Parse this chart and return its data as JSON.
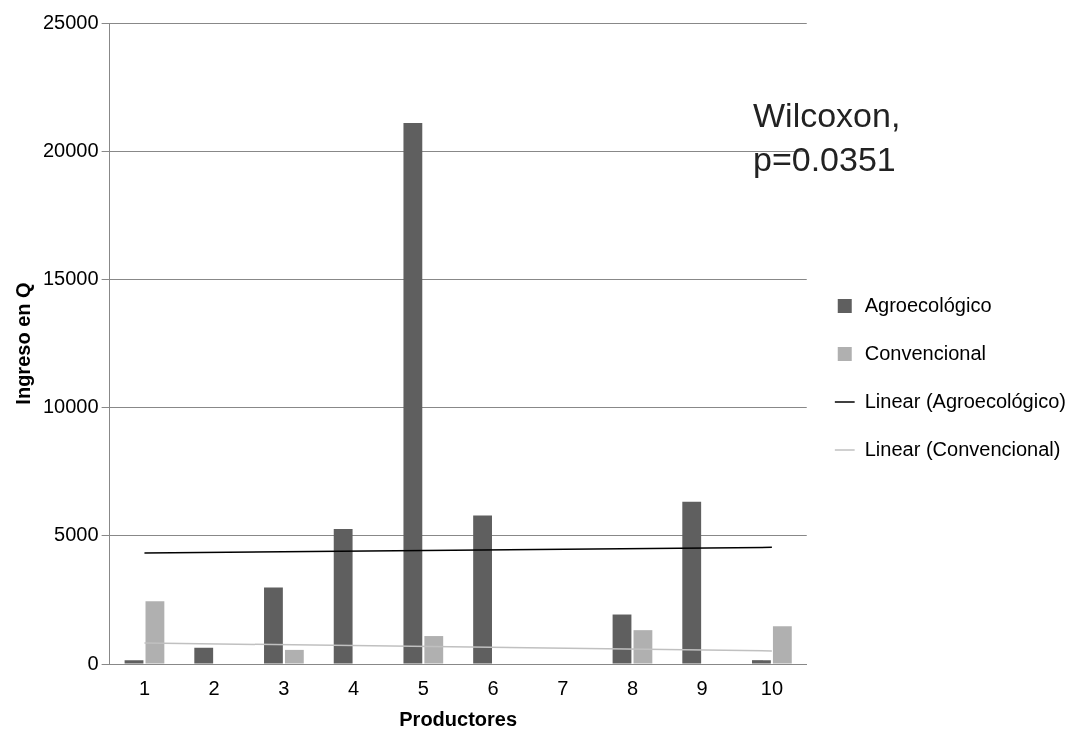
{
  "chart_data": {
    "type": "bar",
    "xlabel": "Productores",
    "ylabel": "Ingreso en Q",
    "categories": [
      "1",
      "2",
      "3",
      "4",
      "5",
      "6",
      "7",
      "8",
      "9",
      "10"
    ],
    "series": [
      {
        "name": "Agroecológico",
        "color": "#5f5f5f",
        "values": [
          150,
          630,
          2980,
          5270,
          21100,
          5790,
          0,
          1930,
          6330,
          150
        ]
      },
      {
        "name": "Convencional",
        "color": "#b0b0b0",
        "values": [
          2450,
          0,
          550,
          0,
          1090,
          0,
          0,
          1320,
          0,
          1470
        ]
      },
      {
        "name": "Linear (Agroecológico)",
        "type": "line",
        "color": "#000000",
        "values": [
          4330,
          null,
          null,
          null,
          null,
          null,
          null,
          null,
          null,
          4550
        ]
      },
      {
        "name": "Linear (Convencional)",
        "type": "line",
        "color": "#c0c0c0",
        "values": [
          820,
          null,
          null,
          null,
          null,
          null,
          null,
          null,
          null,
          510
        ]
      }
    ],
    "ylim": [
      0,
      25000
    ],
    "yticks": [
      0,
      5000,
      10000,
      15000,
      20000,
      25000
    ],
    "grid": "y",
    "legend": "right",
    "marker": "none",
    "line_style": "solid",
    "annotations": [
      "Wilcoxon, p=0.0351"
    ]
  }
}
